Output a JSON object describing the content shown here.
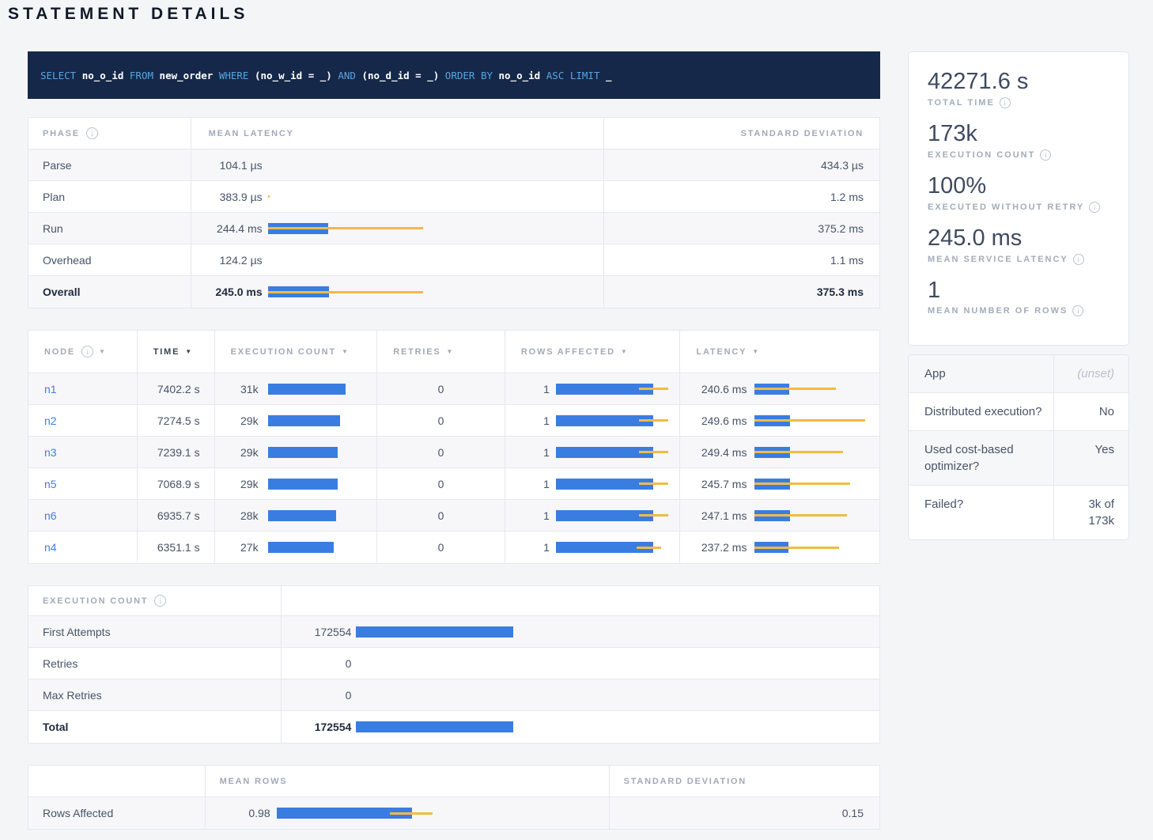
{
  "page": {
    "title": "STATEMENT DETAILS"
  },
  "colors": {
    "bar_blue": "#3A7DE1",
    "bar_yellow": "#F0BB45",
    "link_blue": "#3E7FDE",
    "sql_bg": "#152849",
    "sql_keyword": "#58A6E0"
  },
  "sql": {
    "tokens": [
      {
        "t": "SELECT ",
        "kw": true
      },
      {
        "t": "no_o_id ",
        "kw": false
      },
      {
        "t": "FROM ",
        "kw": true
      },
      {
        "t": "new_order ",
        "kw": false
      },
      {
        "t": "WHERE ",
        "kw": true
      },
      {
        "t": "(no_w_id = _) ",
        "kw": false
      },
      {
        "t": "AND ",
        "kw": true
      },
      {
        "t": "(no_d_id = _) ",
        "kw": false
      },
      {
        "t": "ORDER BY ",
        "kw": true
      },
      {
        "t": "no_o_id ",
        "kw": false
      },
      {
        "t": "ASC LIMIT ",
        "kw": true
      },
      {
        "t": "_",
        "kw": false
      }
    ]
  },
  "phase_table": {
    "headers": {
      "phase": "PHASE",
      "mean_latency": "MEAN LATENCY",
      "std_dev": "STANDARD DEVIATION"
    },
    "rows": [
      {
        "label": "Parse",
        "mean": "104.1 µs",
        "sd": "434.3 µs",
        "bar": {
          "pct": 0,
          "dev_from": 0,
          "dev_to": 0
        }
      },
      {
        "label": "Plan",
        "mean": "383.9 µs",
        "sd": "1.2 ms",
        "bar": {
          "pct": 0,
          "dev_from": 0,
          "dev_to": 1
        }
      },
      {
        "label": "Run",
        "mean": "244.4 ms",
        "sd": "375.2 ms",
        "bar": {
          "pct": 39,
          "dev_from": 0,
          "dev_to": 100
        }
      },
      {
        "label": "Overhead",
        "mean": "124.2 µs",
        "sd": "1.1 ms",
        "bar": {
          "pct": 0,
          "dev_from": 0,
          "dev_to": 0
        }
      },
      {
        "label": "Overall",
        "mean": "245.0 ms",
        "sd": "375.3 ms",
        "bar": {
          "pct": 39.5,
          "dev_from": 0,
          "dev_to": 100
        }
      }
    ]
  },
  "node_table": {
    "headers": {
      "node": "NODE",
      "time": "TIME",
      "exec": "EXECUTION COUNT",
      "retries": "RETRIES",
      "rows": "ROWS AFFECTED",
      "latency": "LATENCY"
    },
    "rows": [
      {
        "node": "n1",
        "time": "7402.2 s",
        "exec": "31k",
        "exec_bar": {
          "pct": 100
        },
        "retries": "0",
        "rows": "1",
        "rows_bar": {
          "pct": 87,
          "dev_from": 74,
          "dev_to": 100
        },
        "latency": "240.6 ms",
        "lat_bar": {
          "pct": 31,
          "dev_from": 0,
          "dev_to": 73
        }
      },
      {
        "node": "n2",
        "time": "7274.5 s",
        "exec": "29k",
        "exec_bar": {
          "pct": 93
        },
        "retries": "0",
        "rows": "1",
        "rows_bar": {
          "pct": 87,
          "dev_from": 74,
          "dev_to": 100
        },
        "latency": "249.6 ms",
        "lat_bar": {
          "pct": 32,
          "dev_from": 0,
          "dev_to": 100
        }
      },
      {
        "node": "n3",
        "time": "7239.1 s",
        "exec": "29k",
        "exec_bar": {
          "pct": 90
        },
        "retries": "0",
        "rows": "1",
        "rows_bar": {
          "pct": 87,
          "dev_from": 74,
          "dev_to": 100
        },
        "latency": "249.4 ms",
        "lat_bar": {
          "pct": 32,
          "dev_from": 0,
          "dev_to": 80
        }
      },
      {
        "node": "n5",
        "time": "7068.9 s",
        "exec": "29k",
        "exec_bar": {
          "pct": 90
        },
        "retries": "0",
        "rows": "1",
        "rows_bar": {
          "pct": 87,
          "dev_from": 74,
          "dev_to": 100
        },
        "latency": "245.7 ms",
        "lat_bar": {
          "pct": 31.5,
          "dev_from": 0,
          "dev_to": 86
        }
      },
      {
        "node": "n6",
        "time": "6935.7 s",
        "exec": "28k",
        "exec_bar": {
          "pct": 88
        },
        "retries": "0",
        "rows": "1",
        "rows_bar": {
          "pct": 87,
          "dev_from": 74,
          "dev_to": 100
        },
        "latency": "247.1 ms",
        "lat_bar": {
          "pct": 31.8,
          "dev_from": 0,
          "dev_to": 83
        }
      },
      {
        "node": "n4",
        "time": "6351.1 s",
        "exec": "27k",
        "exec_bar": {
          "pct": 85
        },
        "retries": "0",
        "rows": "1",
        "rows_bar": {
          "pct": 87,
          "dev_from": 72,
          "dev_to": 94
        },
        "latency": "237.2 ms",
        "lat_bar": {
          "pct": 30.5,
          "dev_from": 0,
          "dev_to": 76
        }
      }
    ]
  },
  "exec_table": {
    "title": "EXECUTION COUNT",
    "rows": [
      {
        "label": "First Attempts",
        "value": "172554",
        "bar": {
          "pct": 100
        }
      },
      {
        "label": "Retries",
        "value": "0",
        "bar": {
          "pct": 0
        }
      },
      {
        "label": "Max Retries",
        "value": "0",
        "bar": {
          "pct": 0
        }
      },
      {
        "label": "Total",
        "value": "172554",
        "bar": {
          "pct": 100
        }
      }
    ]
  },
  "rows_table": {
    "headers": {
      "mean_rows": "MEAN ROWS",
      "std_dev": "STANDARD DEVIATION"
    },
    "row": {
      "label": "Rows Affected",
      "mean": "0.98",
      "bar": {
        "pct": 87,
        "dev_from": 73,
        "dev_to": 100
      },
      "sd": "0.15"
    }
  },
  "summary": {
    "stats": [
      {
        "value": "42271.6 s",
        "label": "TOTAL TIME"
      },
      {
        "value": "173k",
        "label": "EXECUTION COUNT"
      },
      {
        "value": "100%",
        "label": "EXECUTED WITHOUT RETRY"
      },
      {
        "value": "245.0 ms",
        "label": "MEAN SERVICE LATENCY"
      },
      {
        "value": "1",
        "label": "MEAN NUMBER OF ROWS"
      }
    ]
  },
  "details": {
    "rows": [
      {
        "label": "App",
        "value": "(unset)",
        "muted": true
      },
      {
        "label": "Distributed execution?",
        "value": "No",
        "muted": false
      },
      {
        "label": "Used cost-based optimizer?",
        "value": "Yes",
        "muted": false
      },
      {
        "label": "Failed?",
        "value": "3k of 173k",
        "muted": false
      }
    ]
  }
}
